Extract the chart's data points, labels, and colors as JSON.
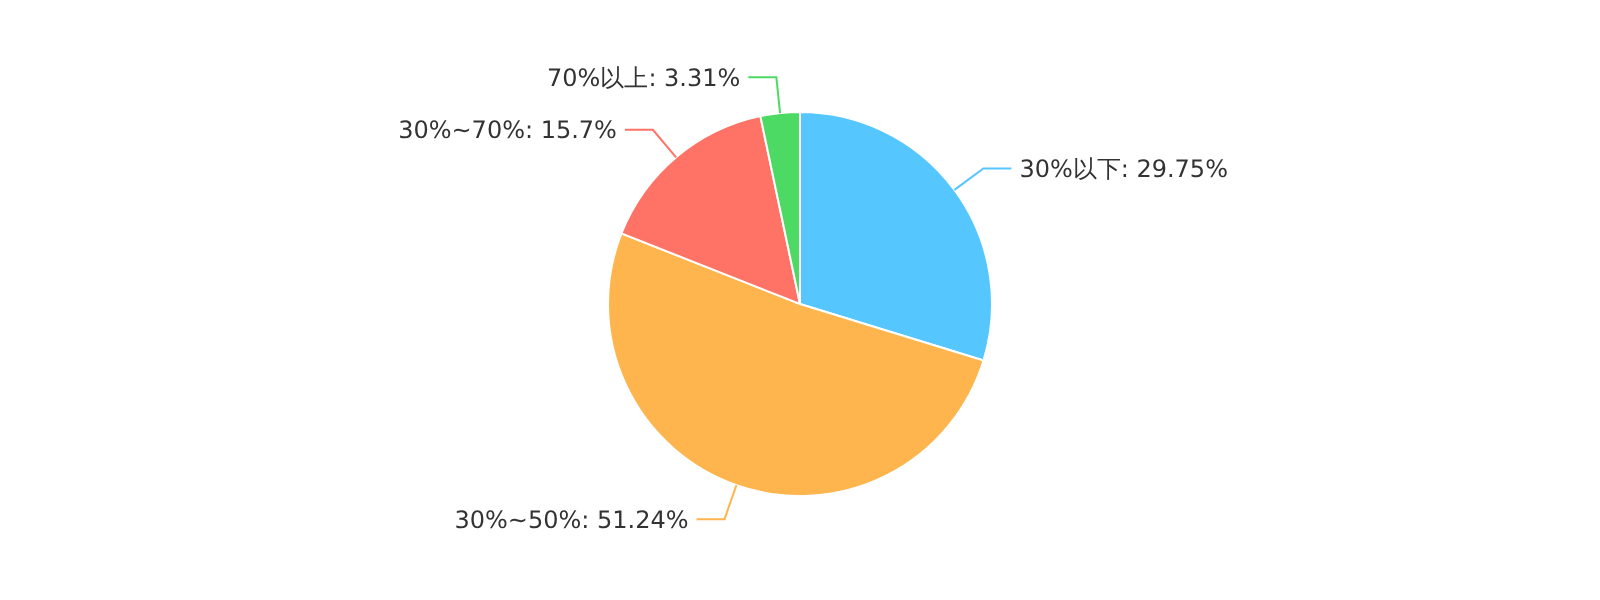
{
  "chart_data": {
    "type": "pie",
    "categories": [
      "30%以下",
      "30%~50%",
      "30%~70%",
      "70%以上"
    ],
    "values": [
      29.75,
      51.24,
      15.7,
      3.31
    ],
    "value_labels": [
      "29.75%",
      "51.24%",
      "15.7%",
      "3.31%"
    ],
    "colors": [
      "#56c6ff",
      "#ffb54d",
      "#ff7366",
      "#4cd964"
    ],
    "legend": false
  }
}
